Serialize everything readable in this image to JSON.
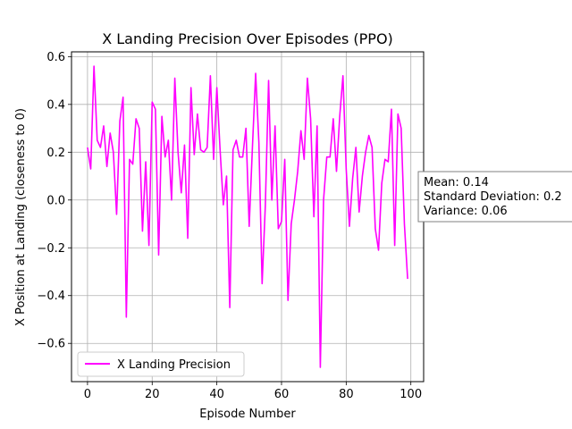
{
  "chart_data": {
    "type": "line",
    "title": "X Landing Precision Over Episodes (PPO)",
    "xlabel": "Episode Number",
    "ylabel": "X Position at Landing (closeness to 0)",
    "xlim": [
      -4.95,
      103.95
    ],
    "ylim": [
      -0.76,
      0.62
    ],
    "xticks": [
      0,
      20,
      40,
      60,
      80,
      100
    ],
    "xtick_labels": [
      "0",
      "20",
      "40",
      "60",
      "80",
      "100"
    ],
    "yticks": [
      -0.6,
      -0.4,
      -0.2,
      0.0,
      0.2,
      0.4,
      0.6
    ],
    "ytick_labels": [
      "−0.6",
      "−0.4",
      "−0.2",
      "0.0",
      "0.2",
      "0.4",
      "0.6"
    ],
    "grid": true,
    "legend_position": "lower-left",
    "color": "#ff00ff",
    "series": [
      {
        "name": "X Landing Precision",
        "x": [
          0,
          1,
          2,
          3,
          4,
          5,
          6,
          7,
          8,
          9,
          10,
          11,
          12,
          13,
          14,
          15,
          16,
          17,
          18,
          19,
          20,
          21,
          22,
          23,
          24,
          25,
          26,
          27,
          28,
          29,
          30,
          31,
          32,
          33,
          34,
          35,
          36,
          37,
          38,
          39,
          40,
          41,
          42,
          43,
          44,
          45,
          46,
          47,
          48,
          49,
          50,
          51,
          52,
          53,
          54,
          55,
          56,
          57,
          58,
          59,
          60,
          61,
          62,
          63,
          64,
          65,
          66,
          67,
          68,
          69,
          70,
          71,
          72,
          73,
          74,
          75,
          76,
          77,
          78,
          79,
          80,
          81,
          82,
          83,
          84,
          85,
          86,
          87,
          88,
          89,
          90,
          91,
          92,
          93,
          94,
          95,
          96,
          97,
          98,
          99
        ],
        "values": [
          0.22,
          0.13,
          0.56,
          0.25,
          0.22,
          0.31,
          0.14,
          0.28,
          0.2,
          -0.06,
          0.33,
          0.43,
          -0.49,
          0.17,
          0.15,
          0.34,
          0.3,
          -0.13,
          0.16,
          -0.19,
          0.41,
          0.38,
          -0.23,
          0.35,
          0.18,
          0.25,
          0.0,
          0.51,
          0.2,
          0.03,
          0.23,
          -0.16,
          0.47,
          0.19,
          0.36,
          0.21,
          0.2,
          0.22,
          0.52,
          0.17,
          0.47,
          0.21,
          -0.02,
          0.1,
          -0.45,
          0.21,
          0.25,
          0.18,
          0.18,
          0.3,
          -0.11,
          0.22,
          0.53,
          0.24,
          -0.35,
          -0.02,
          0.5,
          0.0,
          0.31,
          -0.12,
          -0.09,
          0.17,
          -0.42,
          -0.1,
          0.0,
          0.12,
          0.29,
          0.17,
          0.51,
          0.34,
          -0.07,
          0.31,
          -0.7,
          0.0,
          0.18,
          0.18,
          0.34,
          0.12,
          0.35,
          0.52,
          0.13,
          -0.11,
          0.09,
          0.22,
          -0.05,
          0.1,
          0.2,
          0.27,
          0.22,
          -0.12,
          -0.21,
          0.07,
          0.17,
          0.16,
          0.38,
          -0.19,
          0.36,
          0.3,
          -0.1,
          -0.33
        ]
      }
    ],
    "stats_box": {
      "line1": "Mean: 0.14",
      "line2": "Standard Deviation: 0.2",
      "line3": "Variance: 0.06"
    }
  }
}
